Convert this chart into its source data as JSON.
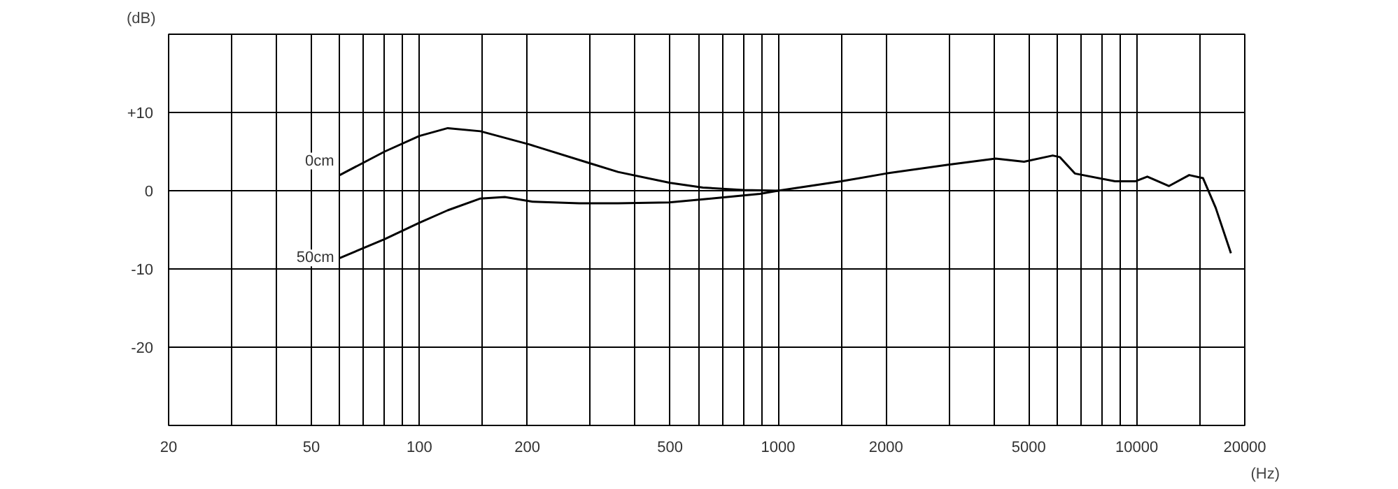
{
  "chart_data": {
    "type": "line",
    "ylabel": "(dB)",
    "xlabel": "(Hz)",
    "log": "x",
    "grid": true,
    "marker": "none",
    "line_style": "solid",
    "xlim": [
      20,
      20000
    ],
    "ylim": [
      -30,
      20
    ],
    "xticks": [
      20,
      {
        "value": 30,
        "label": null
      },
      {
        "value": 40,
        "label": null
      },
      50,
      {
        "value": 60,
        "label": null
      },
      {
        "value": 70,
        "label": null
      },
      {
        "value": 80,
        "label": null
      },
      {
        "value": 90,
        "label": null
      },
      100,
      {
        "value": 150,
        "label": null
      },
      200,
      {
        "value": 300,
        "label": null
      },
      {
        "value": 400,
        "label": null
      },
      500,
      {
        "value": 600,
        "label": null
      },
      {
        "value": 700,
        "label": null
      },
      {
        "value": 800,
        "label": null
      },
      {
        "value": 900,
        "label": null
      },
      1000,
      {
        "value": 1500,
        "label": null
      },
      2000,
      {
        "value": 3000,
        "label": null
      },
      {
        "value": 4000,
        "label": null
      },
      5000,
      {
        "value": 6000,
        "label": null
      },
      {
        "value": 7000,
        "label": null
      },
      {
        "value": 8000,
        "label": null
      },
      {
        "value": 9000,
        "label": null
      },
      10000,
      {
        "value": 15000,
        "label": null
      },
      20000
    ],
    "yticks": [
      {
        "value": -30,
        "label": null
      },
      -20,
      -10,
      0,
      {
        "value": 10,
        "label": "+10"
      },
      {
        "value": 20,
        "label": null
      }
    ],
    "series": [
      {
        "name": "0cm",
        "color": "#000000",
        "x": [
          60,
          80,
          100,
          120,
          148,
          203,
          299,
          358,
          500,
          617,
          800,
          1000,
          1500,
          2000,
          2960,
          4040,
          4850,
          5830,
          6100,
          6720,
          8700,
          9900,
          10700,
          12300,
          14000,
          15300,
          16600,
          18300
        ],
        "values": [
          2,
          5,
          7,
          8,
          7.6,
          5.9,
          3.5,
          2.4,
          1,
          0.4,
          0.1,
          0,
          1.2,
          2.2,
          3.3,
          4.1,
          3.7,
          4.5,
          4.3,
          2.2,
          1.2,
          1.2,
          1.8,
          0.6,
          2,
          1.6,
          -2.2,
          -8
        ]
      },
      {
        "name": "50cm",
        "color": "#000000",
        "x": [
          60,
          80,
          100,
          120,
          148,
          173,
          207,
          279,
          358,
          497,
          650,
          890,
          1000
        ],
        "values": [
          -8.6,
          -6.2,
          -4.1,
          -2.5,
          -1,
          -0.8,
          -1.4,
          -1.6,
          -1.6,
          -1.5,
          -1,
          -0.4,
          0
        ]
      }
    ]
  }
}
